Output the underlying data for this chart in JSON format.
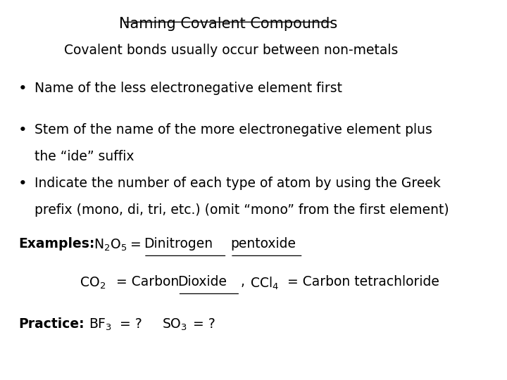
{
  "title": "Naming Covalent Compounds",
  "subtitle": "Covalent bonds usually occur between non-metals",
  "bullet1": "Name of the less electronegative element first",
  "bullet2_line1": "Stem of the name of the more electronegative element plus",
  "bullet2_line2": "the “ide” suffix",
  "bullet3_line1": "Indicate the number of each type of atom by using the Greek",
  "bullet3_line2": "prefix (mono, di, tri, etc.) (omit “mono” from the first element)",
  "background_color": "#ffffff",
  "text_color": "#000000",
  "font_family": "DejaVu Sans",
  "title_fontsize": 15,
  "body_fontsize": 13.5
}
